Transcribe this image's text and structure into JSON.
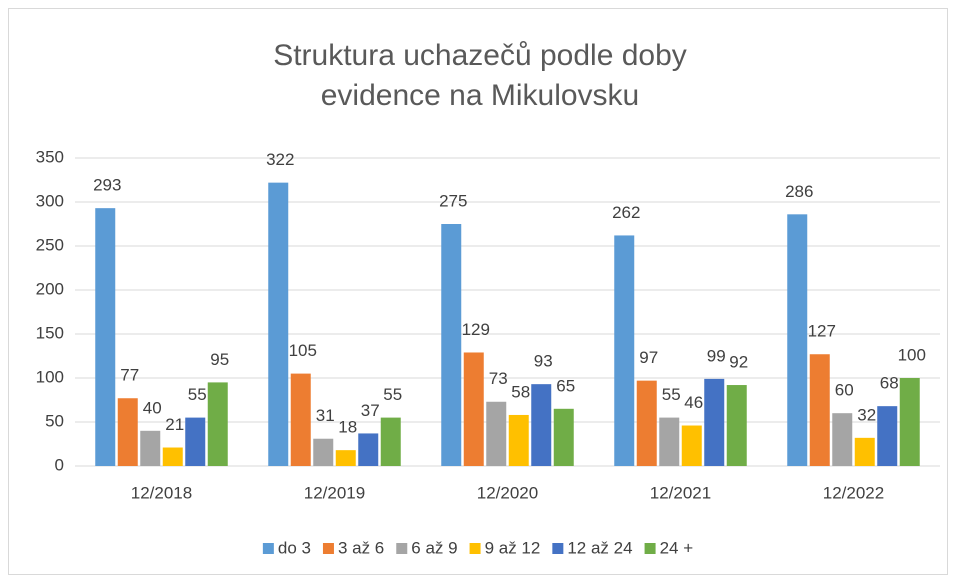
{
  "chart_data": {
    "type": "bar",
    "title": "Struktura uchazečů podle doby evidence na Mikulovsku",
    "categories": [
      "12/2018",
      "12/2019",
      "12/2020",
      "12/2021",
      "12/2022"
    ],
    "series": [
      {
        "name": "do 3",
        "color": "#5b9bd5",
        "values": [
          293,
          322,
          275,
          262,
          286
        ]
      },
      {
        "name": "3 až 6",
        "color": "#ed7d31",
        "values": [
          77,
          105,
          129,
          97,
          127
        ]
      },
      {
        "name": "6 až 9",
        "color": "#a5a5a5",
        "values": [
          40,
          31,
          73,
          55,
          60
        ]
      },
      {
        "name": "9 až 12",
        "color": "#ffc000",
        "values": [
          21,
          18,
          58,
          46,
          32
        ]
      },
      {
        "name": "12 až 24",
        "color": "#4472c4",
        "values": [
          55,
          37,
          93,
          99,
          68
        ]
      },
      {
        "name": "24 +",
        "color": "#70ad47",
        "values": [
          95,
          55,
          65,
          92,
          100
        ]
      }
    ],
    "ylim": [
      0,
      350
    ],
    "yticks": [
      0,
      50,
      100,
      150,
      200,
      250,
      300,
      350
    ],
    "grid": true,
    "legend": "bottom"
  }
}
